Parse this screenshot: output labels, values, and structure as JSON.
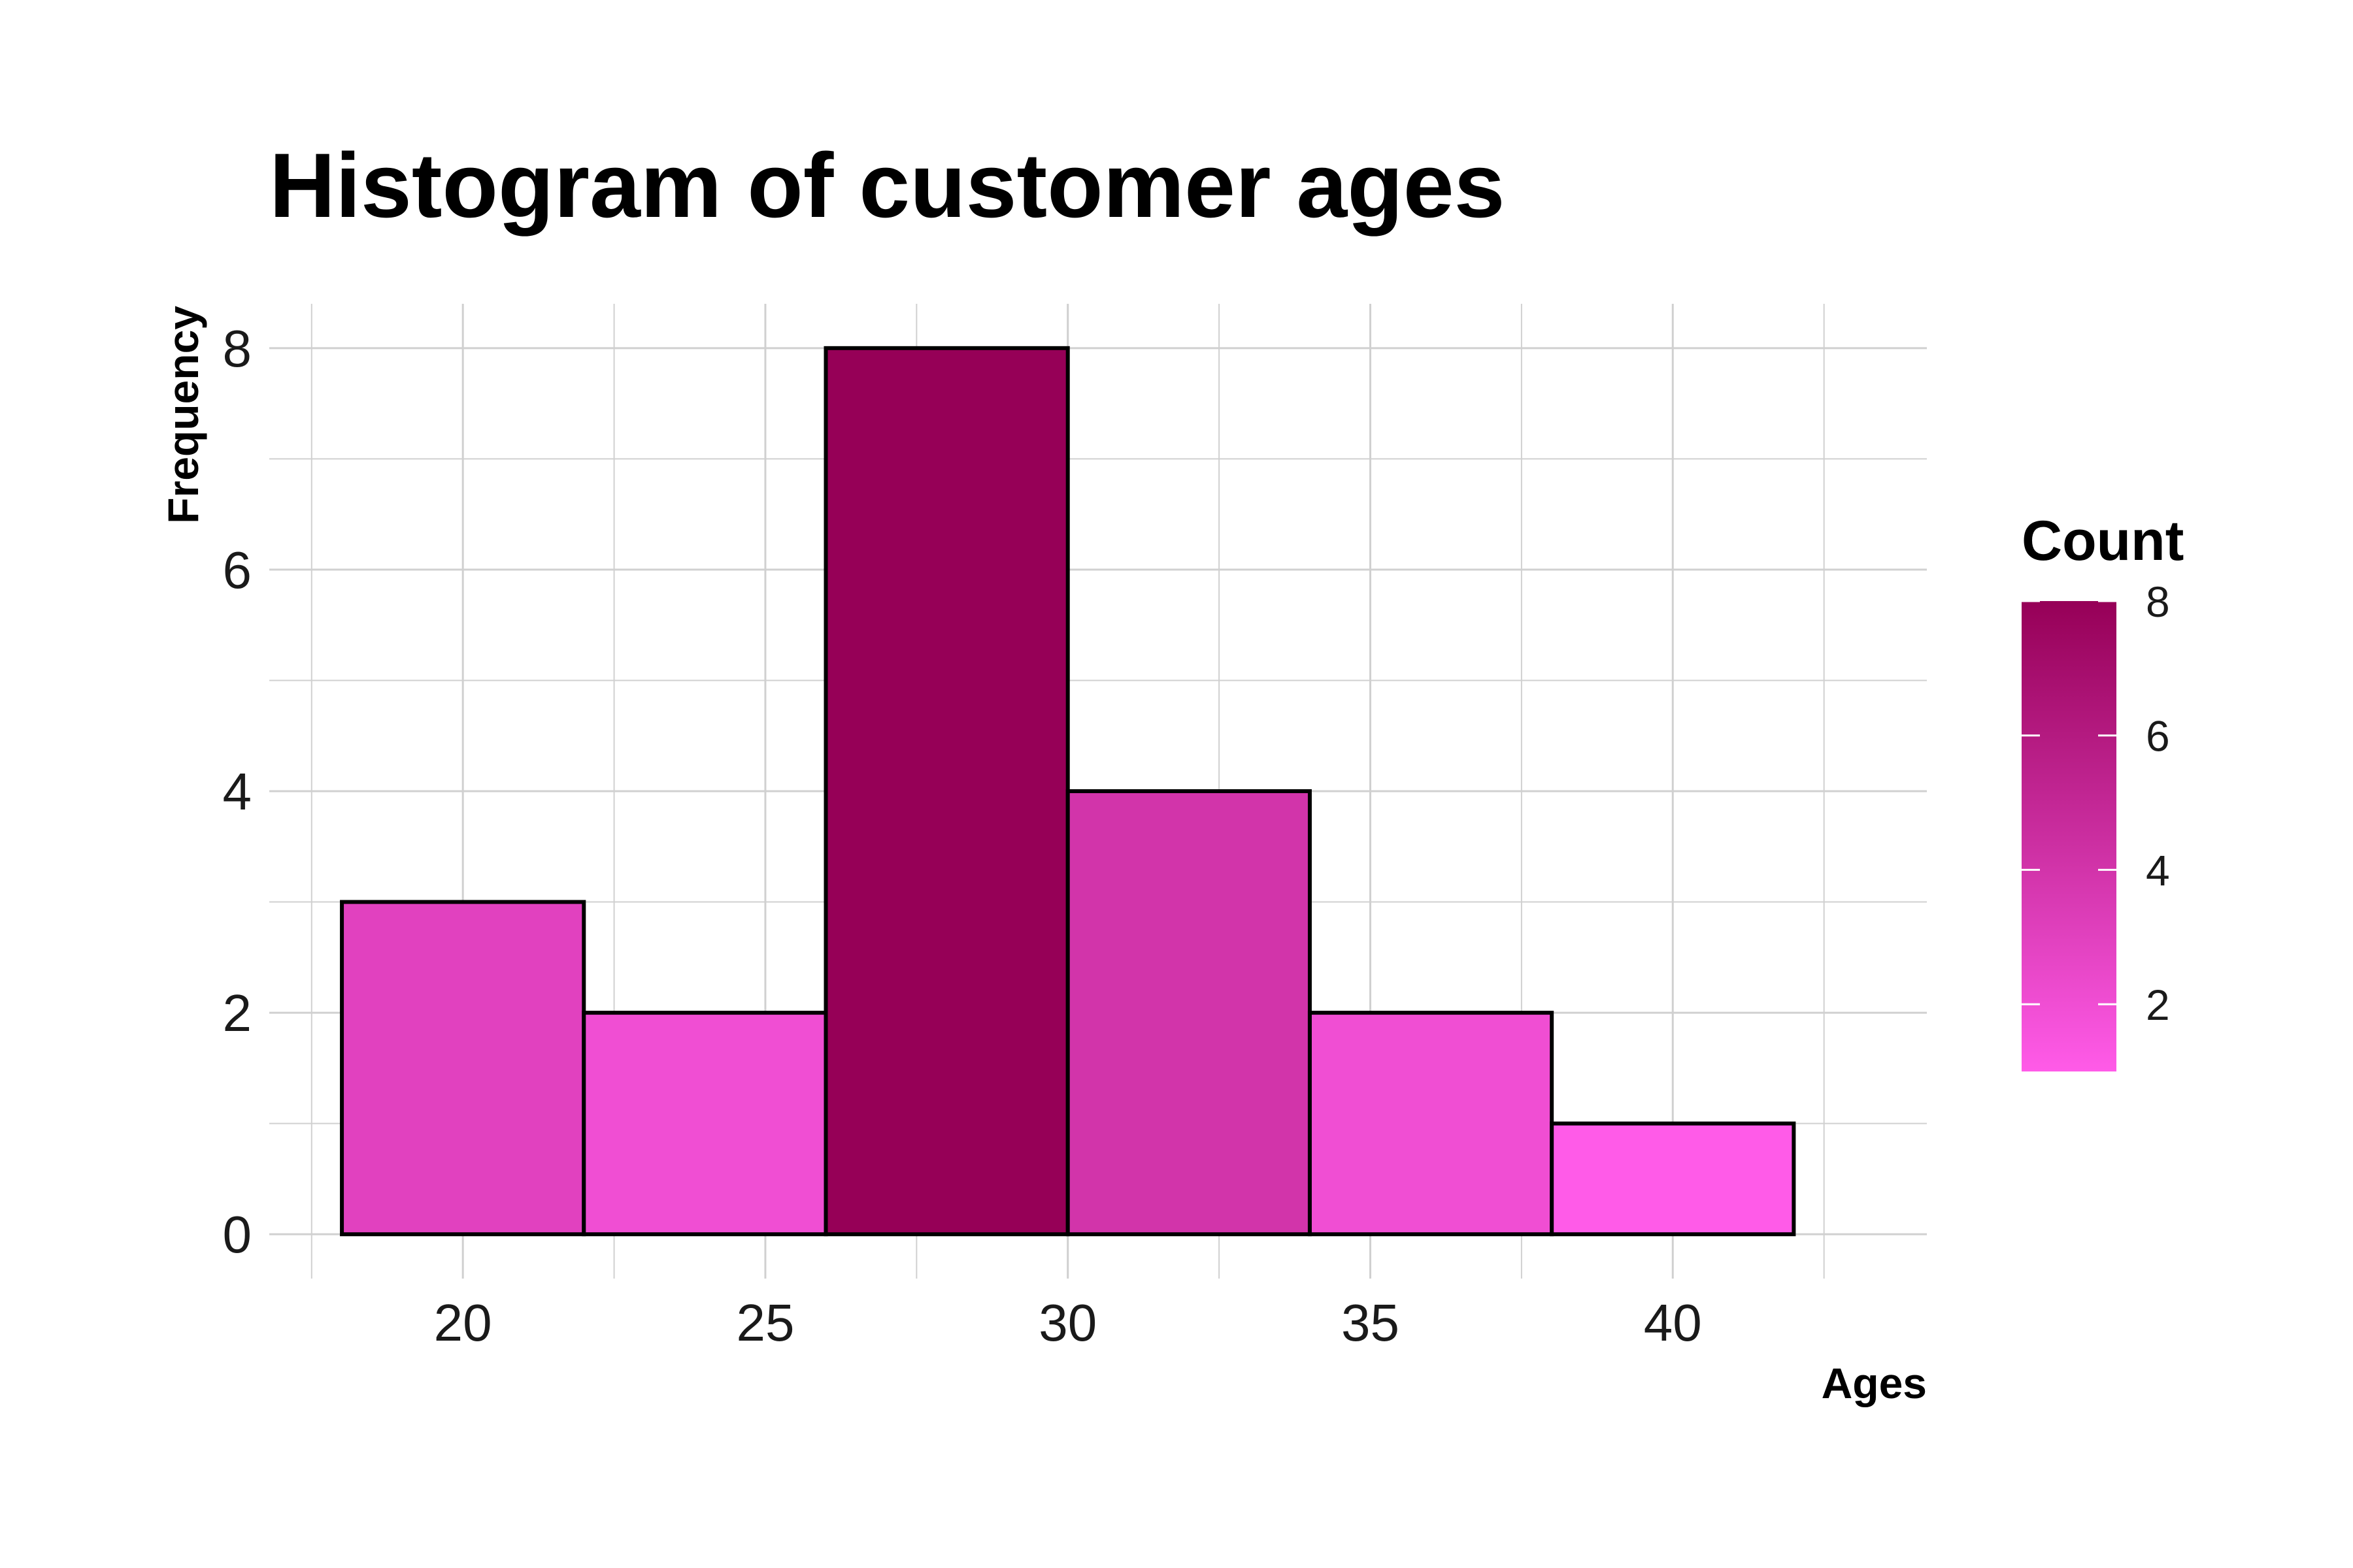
{
  "chart_data": {
    "type": "bar",
    "title": "Histogram of customer ages",
    "xlabel": "Ages",
    "ylabel": "Frequency",
    "bins": [
      {
        "start": 18,
        "end": 22,
        "count": 3
      },
      {
        "start": 22,
        "end": 26,
        "count": 2
      },
      {
        "start": 26,
        "end": 30,
        "count": 8
      },
      {
        "start": 30,
        "end": 34,
        "count": 4
      },
      {
        "start": 34,
        "end": 38,
        "count": 2
      },
      {
        "start": 38,
        "end": 42,
        "count": 1
      }
    ],
    "xlim": [
      16.8,
      44.2
    ],
    "ylim": [
      -0.4,
      8.4
    ],
    "x_ticks": [
      20,
      25,
      30,
      35,
      40
    ],
    "y_ticks": [
      0,
      2,
      4,
      6,
      8
    ],
    "grid": true,
    "legend": {
      "title": "Count",
      "placement": "right",
      "min": 1,
      "max": 8,
      "ticks": [
        2,
        4,
        6,
        8
      ],
      "low_color": "#FF5BE8",
      "high_color": "#960057"
    },
    "bar_outline_color": "#000000"
  }
}
